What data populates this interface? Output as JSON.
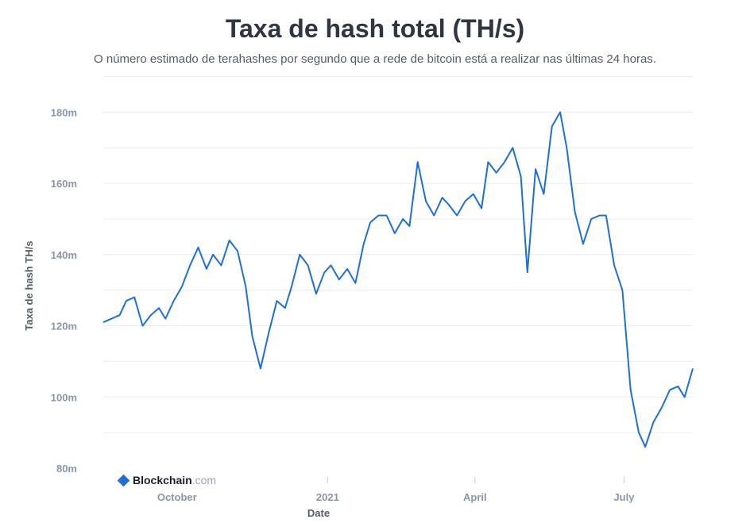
{
  "chart_data": {
    "type": "line",
    "title": "Taxa de hash total (TH/s)",
    "subtitle": "O número estimado de terahashes por segundo que a rede de bitcoin está a realizar nas últimas 24 horas.",
    "xlabel": "Date",
    "ylabel": "Taxa de hash TH/s",
    "x_ticks": [
      "October",
      "2021",
      "April",
      "July"
    ],
    "y_ticks": [
      "80m",
      "100m",
      "120m",
      "140m",
      "160m",
      "180m"
    ],
    "ylim": [
      80,
      191
    ],
    "grid": true,
    "line_color": "#1f6fd6",
    "series": [
      {
        "name": "",
        "x": [
          "2020-08-17",
          "2020-08-22",
          "2020-08-27",
          "2020-08-31",
          "2020-09-05",
          "2020-09-10",
          "2020-09-15",
          "2020-09-20",
          "2020-09-24",
          "2020-09-29",
          "2020-10-04",
          "2020-10-09",
          "2020-10-14",
          "2020-10-19",
          "2020-10-23",
          "2020-10-28",
          "2020-11-02",
          "2020-11-07",
          "2020-11-12",
          "2020-11-16",
          "2020-11-21",
          "2020-11-26",
          "2020-12-01",
          "2020-12-06",
          "2020-12-10",
          "2020-12-15",
          "2020-12-20",
          "2020-12-25",
          "2020-12-30",
          "2021-01-03",
          "2021-01-08",
          "2021-01-13",
          "2021-01-18",
          "2021-01-23",
          "2021-01-27",
          "2021-02-01",
          "2021-02-06",
          "2021-02-11",
          "2021-02-16",
          "2021-02-20",
          "2021-02-25",
          "2021-03-02",
          "2021-03-07",
          "2021-03-12",
          "2021-03-16",
          "2021-03-21",
          "2021-03-26",
          "2021-03-31",
          "2021-04-05",
          "2021-04-09",
          "2021-04-14",
          "2021-04-19",
          "2021-04-24",
          "2021-04-29",
          "2021-05-03",
          "2021-05-08",
          "2021-05-13",
          "2021-05-18",
          "2021-05-23",
          "2021-05-27",
          "2021-06-01",
          "2021-06-06",
          "2021-06-11",
          "2021-06-16",
          "2021-06-20",
          "2021-06-25",
          "2021-06-30",
          "2021-07-05",
          "2021-07-10",
          "2021-07-14",
          "2021-07-19",
          "2021-07-24",
          "2021-07-29",
          "2021-08-03",
          "2021-08-07",
          "2021-08-12"
        ],
        "values": [
          121,
          122,
          123,
          127,
          128,
          120,
          123,
          125,
          122,
          127,
          131,
          137,
          142,
          136,
          140,
          137,
          144,
          141,
          131,
          117,
          108,
          118,
          127,
          125,
          131,
          140,
          137,
          129,
          135,
          137,
          133,
          136,
          132,
          143,
          149,
          151,
          151,
          146,
          150,
          148,
          166,
          155,
          151,
          156,
          154,
          151,
          155,
          157,
          153,
          166,
          163,
          166,
          170,
          162,
          135,
          164,
          157,
          176,
          180,
          170,
          152,
          143,
          150,
          151,
          151,
          137,
          130,
          102,
          90,
          86,
          93,
          97,
          102,
          103,
          100,
          108
        ]
      }
    ]
  }
}
